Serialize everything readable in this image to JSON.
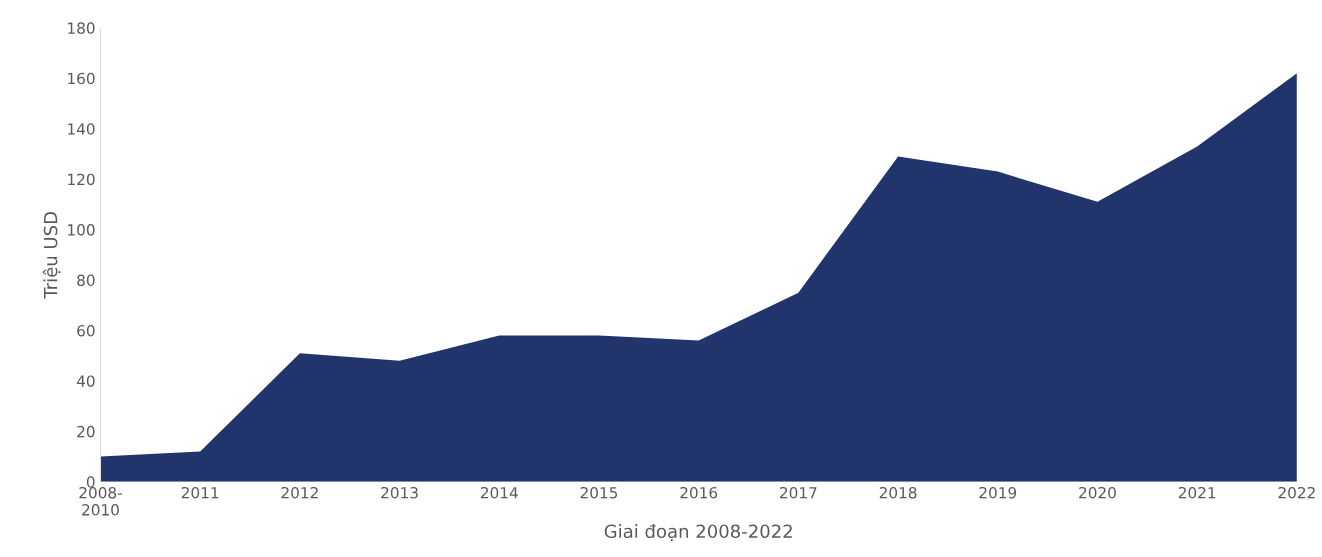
{
  "chart_data": {
    "type": "area",
    "xlabel": "Giai đoạn 2008-2022",
    "ylabel": "Triệu USD",
    "categories": [
      "2008-\n2010",
      "2011",
      "2012",
      "2013",
      "2014",
      "2015",
      "2016",
      "2017",
      "2018",
      "2019",
      "2020",
      "2021",
      "2022"
    ],
    "series": [
      {
        "color": "#21346b",
        "values": [
          10,
          12,
          51,
          48,
          58,
          58,
          56,
          75,
          129,
          123,
          111,
          133,
          162
        ]
      }
    ],
    "ylim": [
      0,
      180
    ],
    "yticks": [
      0,
      20,
      40,
      60,
      80,
      100,
      120,
      140,
      160,
      180
    ],
    "grid": false,
    "legend": false
  }
}
